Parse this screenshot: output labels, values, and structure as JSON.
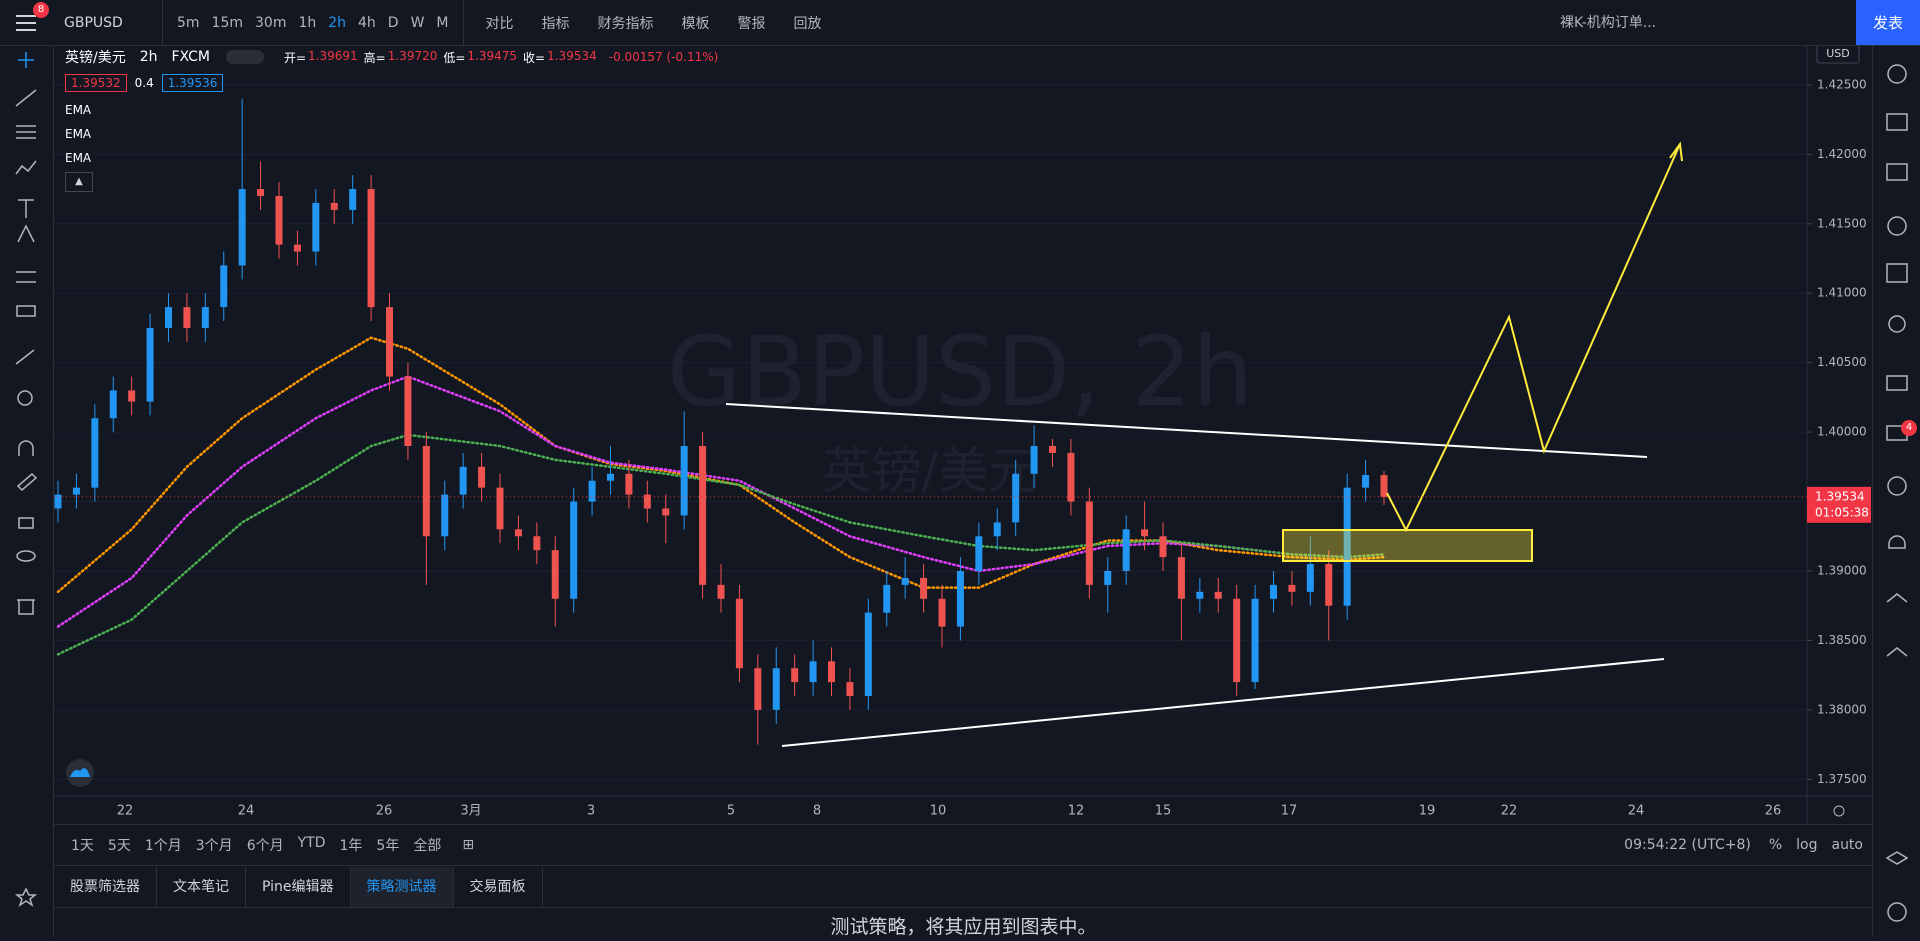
{
  "toolbar": {
    "notifications": "8",
    "symbol": "GBPUSD",
    "intervals": [
      "5m",
      "15m",
      "30m",
      "1h",
      "2h",
      "4h",
      "D",
      "W",
      "M"
    ],
    "buttons": [
      "对比",
      "指标",
      "财务指标",
      "模板",
      "警报",
      "回放"
    ],
    "layout_name": "裸K-机构订单...",
    "publish": "发表"
  },
  "legend": {
    "name": "英镑/美元",
    "interval": "2h",
    "source": "FXCM",
    "ohlc": [
      {
        "label": "开=",
        "value": "1.39691"
      },
      {
        "label": "高=",
        "value": "1.39720"
      },
      {
        "label": "低=",
        "value": "1.39475"
      },
      {
        "label": "收=",
        "value": "1.39534"
      }
    ],
    "change": "-0.00157 (-0.11%)",
    "bid": "1.39532",
    "spread": "0.4",
    "ask": "1.39536",
    "indicators": [
      "EMA",
      "EMA",
      "EMA"
    ]
  },
  "watermark": {
    "symbol": "GBPUSD, 2h",
    "name": "英镑/美元"
  },
  "chart_data": {
    "type": "candlestick",
    "currency": "USD",
    "up_color": "#2196f3",
    "down_color": "#ef5350",
    "candles": [
      [
        1.3945,
        1.3965,
        1.3935,
        1.3955
      ],
      [
        1.3955,
        1.397,
        1.3945,
        1.396
      ],
      [
        1.396,
        1.402,
        1.395,
        1.401
      ],
      [
        1.401,
        1.404,
        1.4,
        1.403
      ],
      [
        1.403,
        1.404,
        1.4012,
        1.4022
      ],
      [
        1.4022,
        1.4085,
        1.4012,
        1.4075
      ],
      [
        1.4075,
        1.41,
        1.4065,
        1.409
      ],
      [
        1.409,
        1.41,
        1.4065,
        1.4075
      ],
      [
        1.4075,
        1.41,
        1.4065,
        1.409
      ],
      [
        1.409,
        1.413,
        1.408,
        1.412
      ],
      [
        1.412,
        1.424,
        1.411,
        1.4175
      ],
      [
        1.4175,
        1.4195,
        1.416,
        1.417
      ],
      [
        1.417,
        1.418,
        1.4125,
        1.4135
      ],
      [
        1.4135,
        1.4145,
        1.412,
        1.413
      ],
      [
        1.413,
        1.4175,
        1.412,
        1.4165
      ],
      [
        1.4165,
        1.4175,
        1.415,
        1.416
      ],
      [
        1.416,
        1.4185,
        1.415,
        1.4175
      ],
      [
        1.4175,
        1.4185,
        1.408,
        1.409
      ],
      [
        1.409,
        1.41,
        1.403,
        1.404
      ],
      [
        1.404,
        1.405,
        1.398,
        1.399
      ],
      [
        1.399,
        1.4,
        1.389,
        1.3925
      ],
      [
        1.3925,
        1.3965,
        1.3915,
        1.3955
      ],
      [
        1.3955,
        1.3985,
        1.3945,
        1.3975
      ],
      [
        1.3975,
        1.3985,
        1.395,
        1.396
      ],
      [
        1.396,
        1.397,
        1.392,
        1.393
      ],
      [
        1.393,
        1.394,
        1.3915,
        1.3925
      ],
      [
        1.3925,
        1.3935,
        1.3905,
        1.3915
      ],
      [
        1.3915,
        1.3925,
        1.386,
        1.388
      ],
      [
        1.388,
        1.396,
        1.387,
        1.395
      ],
      [
        1.395,
        1.3975,
        1.394,
        1.3965
      ],
      [
        1.3965,
        1.399,
        1.3955,
        1.397
      ],
      [
        1.397,
        1.398,
        1.3945,
        1.3955
      ],
      [
        1.3955,
        1.3965,
        1.3935,
        1.3945
      ],
      [
        1.3945,
        1.3955,
        1.392,
        1.394
      ],
      [
        1.394,
        1.4015,
        1.393,
        1.399
      ],
      [
        1.399,
        1.4,
        1.388,
        1.389
      ],
      [
        1.389,
        1.3905,
        1.387,
        1.388
      ],
      [
        1.388,
        1.389,
        1.382,
        1.383
      ],
      [
        1.383,
        1.384,
        1.3775,
        1.38
      ],
      [
        1.38,
        1.3845,
        1.379,
        1.383
      ],
      [
        1.383,
        1.384,
        1.381,
        1.382
      ],
      [
        1.382,
        1.385,
        1.381,
        1.3835
      ],
      [
        1.3835,
        1.3845,
        1.381,
        1.382
      ],
      [
        1.382,
        1.383,
        1.38,
        1.381
      ],
      [
        1.381,
        1.388,
        1.38,
        1.387
      ],
      [
        1.387,
        1.39,
        1.386,
        1.389
      ],
      [
        1.389,
        1.391,
        1.388,
        1.3895
      ],
      [
        1.3895,
        1.3905,
        1.387,
        1.388
      ],
      [
        1.388,
        1.389,
        1.3845,
        1.386
      ],
      [
        1.386,
        1.391,
        1.385,
        1.39
      ],
      [
        1.39,
        1.3935,
        1.389,
        1.3925
      ],
      [
        1.3925,
        1.3945,
        1.3915,
        1.3935
      ],
      [
        1.3935,
        1.398,
        1.3925,
        1.397
      ],
      [
        1.397,
        1.4005,
        1.396,
        1.399
      ],
      [
        1.399,
        1.3995,
        1.3975,
        1.3985
      ],
      [
        1.3985,
        1.3995,
        1.394,
        1.395
      ],
      [
        1.395,
        1.396,
        1.388,
        1.389
      ],
      [
        1.389,
        1.391,
        1.387,
        1.39
      ],
      [
        1.39,
        1.394,
        1.389,
        1.393
      ],
      [
        1.393,
        1.395,
        1.3915,
        1.3925
      ],
      [
        1.3925,
        1.3935,
        1.39,
        1.391
      ],
      [
        1.391,
        1.392,
        1.385,
        1.388
      ],
      [
        1.388,
        1.3895,
        1.387,
        1.3885
      ],
      [
        1.3885,
        1.3895,
        1.387,
        1.388
      ],
      [
        1.388,
        1.389,
        1.381,
        1.382
      ],
      [
        1.382,
        1.389,
        1.3815,
        1.388
      ],
      [
        1.388,
        1.39,
        1.387,
        1.389
      ],
      [
        1.389,
        1.39,
        1.3875,
        1.3885
      ],
      [
        1.3885,
        1.3925,
        1.3875,
        1.3905
      ],
      [
        1.3905,
        1.3915,
        1.385,
        1.3875
      ],
      [
        1.3875,
        1.397,
        1.3865,
        1.396
      ],
      [
        1.396,
        1.398,
        1.395,
        1.39691
      ],
      [
        1.39691,
        1.3972,
        1.39475,
        1.39534
      ]
    ],
    "ema": [
      {
        "color": "#ff9800",
        "x": [
          0,
          4,
          7,
          10,
          14,
          17,
          19,
          24,
          27,
          30,
          33,
          37,
          40,
          43,
          47,
          50,
          53,
          57,
          60,
          63,
          67,
          70,
          72
        ],
        "values": [
          1.3885,
          1.393,
          1.3975,
          1.401,
          1.4045,
          1.4068,
          1.406,
          1.402,
          1.399,
          1.3977,
          1.3972,
          1.3962,
          1.3935,
          1.391,
          1.3888,
          1.3888,
          1.3905,
          1.3922,
          1.3922,
          1.3915,
          1.391,
          1.3908,
          1.391
        ]
      },
      {
        "color": "#e040fb",
        "x": [
          0,
          4,
          7,
          10,
          14,
          17,
          19,
          24,
          27,
          30,
          33,
          37,
          40,
          43,
          47,
          50,
          53,
          57,
          60,
          63,
          67,
          70,
          72
        ],
        "values": [
          1.386,
          1.3895,
          1.394,
          1.3975,
          1.401,
          1.403,
          1.404,
          1.4015,
          1.399,
          1.3978,
          1.3973,
          1.3965,
          1.3945,
          1.3925,
          1.391,
          1.39,
          1.3905,
          1.3918,
          1.392,
          1.3918,
          1.3912,
          1.391,
          1.3912
        ]
      },
      {
        "color": "#4caf50",
        "x": [
          0,
          4,
          7,
          10,
          14,
          17,
          19,
          24,
          27,
          30,
          33,
          37,
          40,
          43,
          47,
          50,
          53,
          57,
          60,
          63,
          67,
          70,
          72
        ],
        "values": [
          1.384,
          1.3865,
          1.39,
          1.3935,
          1.3965,
          1.399,
          1.3998,
          1.399,
          1.398,
          1.3975,
          1.397,
          1.3962,
          1.3948,
          1.3935,
          1.3925,
          1.3918,
          1.3915,
          1.392,
          1.3922,
          1.3918,
          1.3912,
          1.391,
          1.3912
        ]
      }
    ],
    "ylim": [
      1.3738,
      1.4278
    ],
    "yticks": [
      {
        "value": 1.425,
        "label": "1.42500"
      },
      {
        "value": 1.42,
        "label": "1.42000"
      },
      {
        "value": 1.415,
        "label": "1.41500"
      },
      {
        "value": 1.41,
        "label": "1.41000"
      },
      {
        "value": 1.405,
        "label": "1.40500"
      },
      {
        "value": 1.4,
        "label": "1.40000"
      },
      {
        "value": 1.395,
        "label": "1.39500"
      },
      {
        "value": 1.39,
        "label": "1.39000"
      },
      {
        "value": 1.385,
        "label": "1.38500"
      },
      {
        "value": 1.38,
        "label": "1.38000"
      },
      {
        "value": 1.375,
        "label": "1.37500"
      }
    ],
    "x_labels": [
      "22",
      "24",
      "26",
      "3月",
      "3",
      "5",
      "8",
      "10",
      "12",
      "15",
      "17",
      "19",
      "22",
      "24",
      "26"
    ],
    "last_price": {
      "value": 1.39534,
      "label": "1.39534"
    },
    "countdown": "01:05:38"
  },
  "range_bar": {
    "ranges": [
      "1天",
      "5天",
      "1个月",
      "3个月",
      "6个月",
      "YTD",
      "1年",
      "5年",
      "全部"
    ],
    "clock": "09:54:22 (UTC+8)",
    "options": [
      "%",
      "log",
      "auto"
    ]
  },
  "bottom_panel": {
    "tabs": [
      "股票筛选器",
      "文本笔记",
      "Pine编辑器",
      "策略测试器",
      "交易面板"
    ],
    "message": "测试策略，将其应用到图表中。"
  },
  "sidebar": {
    "badge": "4"
  }
}
